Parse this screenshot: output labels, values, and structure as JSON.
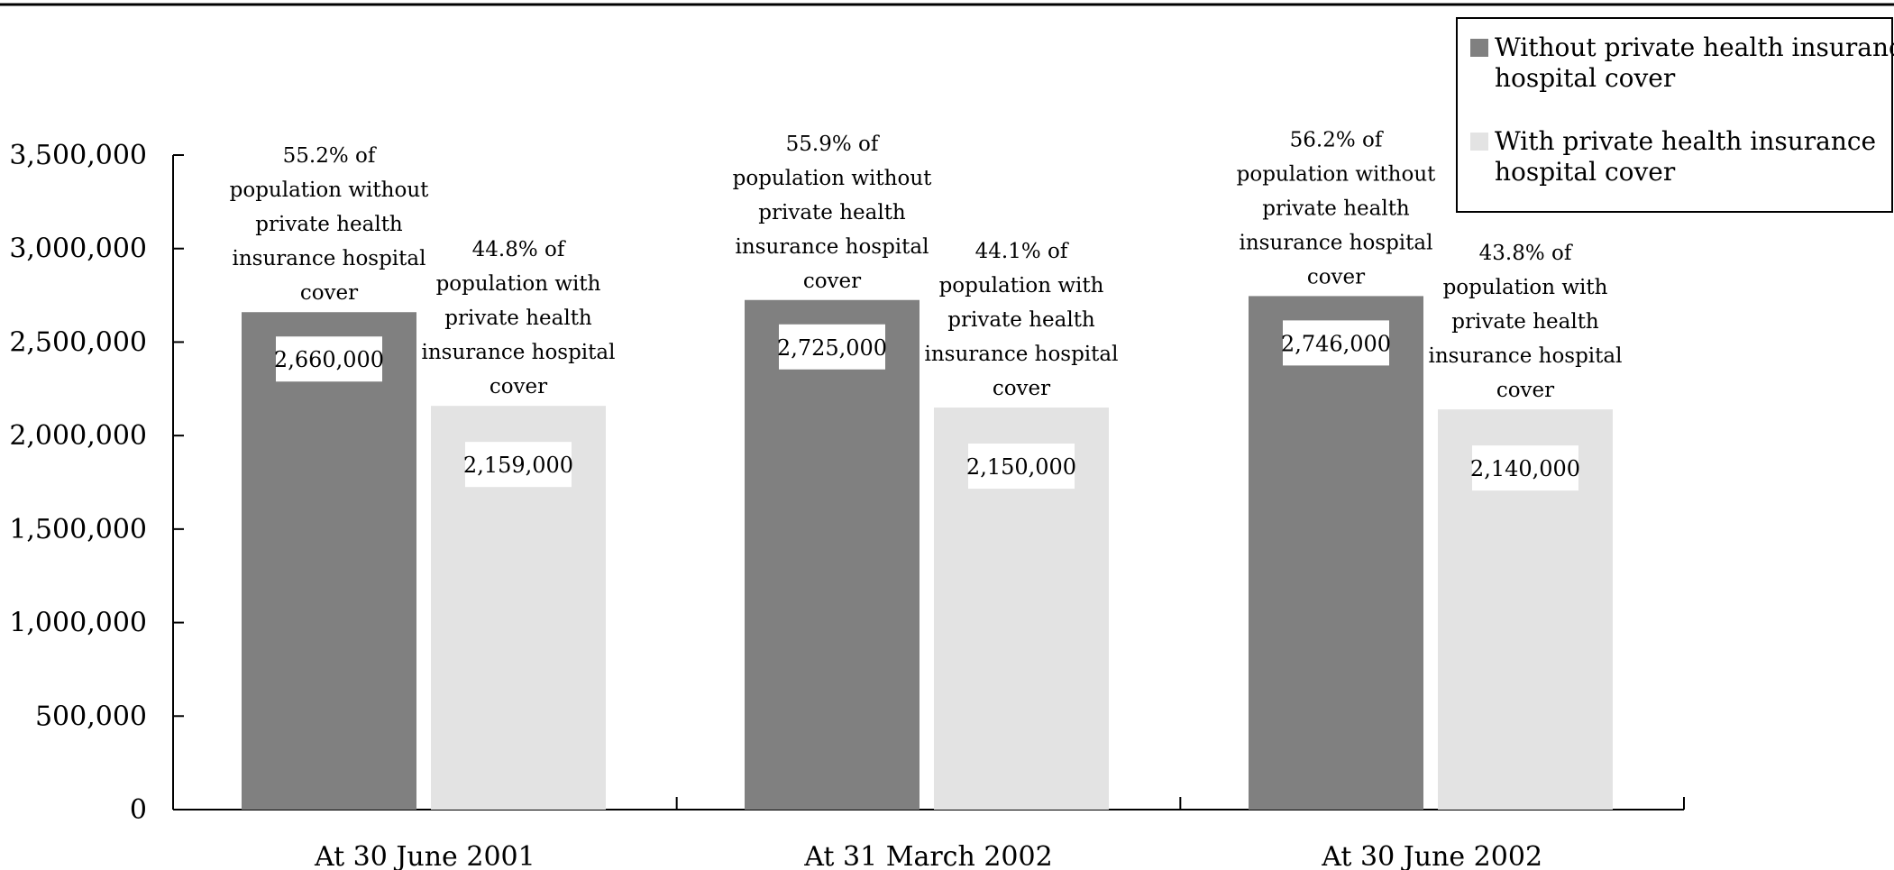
{
  "chart_data": {
    "type": "bar",
    "title": "",
    "xlabel": "",
    "ylabel": "",
    "categories": [
      "At 30 June 2001",
      "At 31 March 2002",
      "At 30 June 2002"
    ],
    "series": [
      {
        "name": "Without private health insurance hospital cover",
        "color": "#808080",
        "values": [
          2660000,
          2725000,
          2746000
        ],
        "value_labels": [
          "2,660,000",
          "2,725,000",
          "2,746,000"
        ],
        "annotations": [
          "55.2% of population without private health insurance hospital cover",
          "55.9% of population without private health insurance hospital cover",
          "56.2% of population without private health insurance hospital cover"
        ]
      },
      {
        "name": "With private health insurance hospital cover",
        "color": "#e3e3e3",
        "values": [
          2159000,
          2150000,
          2140000
        ],
        "value_labels": [
          "2,159,000",
          "2,150,000",
          "2,140,000"
        ],
        "annotations": [
          "44.8% of population with private health insurance hospital cover",
          "44.1% of population with private health insurance hospital cover",
          "43.8% of population with private health insurance hospital cover"
        ]
      }
    ],
    "yticks": [
      0,
      500000,
      1000000,
      1500000,
      2000000,
      2500000,
      3000000,
      3500000
    ],
    "ytick_labels": [
      "0",
      "500,000",
      "1,000,000",
      "1,500,000",
      "2,000,000",
      "2,500,000",
      "3,000,000",
      "3,500,000"
    ],
    "ylim": [
      0,
      3500000
    ],
    "grid": false,
    "legend": {
      "position": "top-right",
      "entries": [
        "Without private health insurance hospital cover",
        "With private health insurance hospital cover"
      ]
    }
  }
}
